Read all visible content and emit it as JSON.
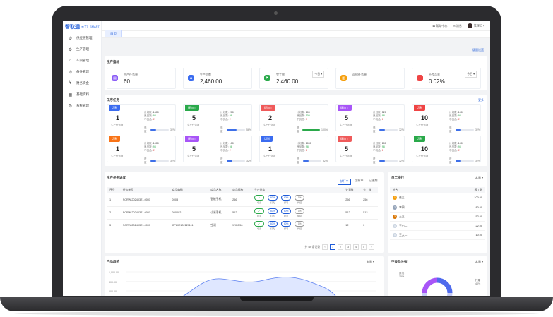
{
  "logo": {
    "name": "智取通",
    "tag": "云工厂SMART"
  },
  "sidebar": {
    "items": [
      {
        "label": "供应链管理",
        "icon": "gear-icon"
      },
      {
        "label": "生产管理",
        "icon": "gear-icon"
      },
      {
        "label": "车间管理",
        "icon": "factory-icon"
      },
      {
        "label": "备件管理",
        "icon": "gear-icon"
      },
      {
        "label": "财务资金",
        "icon": "money-icon"
      },
      {
        "label": "基础资料",
        "icon": "grid-icon"
      },
      {
        "label": "系统管理",
        "icon": "gear-icon"
      }
    ]
  },
  "topbar": {
    "help": "帮助中心",
    "message": "消息",
    "user": "管理员"
  },
  "tabs": {
    "home": "首页"
  },
  "layout_link": "版面设置",
  "production": {
    "title": "生产指标",
    "kpis": [
      {
        "label": "生产任务单",
        "value": "60",
        "color": "#8b5cf6",
        "icon": "order-icon"
      },
      {
        "label": "生产总数",
        "value": "2,460.00",
        "color": "#3b6cf0",
        "icon": "cube-icon"
      },
      {
        "label": "完工数",
        "value": "2,460.00",
        "color": "#2aa94a",
        "icon": "flag-icon",
        "select": "今日"
      },
      {
        "label": "返修任务单",
        "value": "",
        "color": "#f59e0b",
        "icon": "doc-icon"
      },
      {
        "label": "不良品率",
        "value": "0.02%",
        "color": "#ef4444",
        "icon": "alert-icon",
        "select": "今日"
      }
    ]
  },
  "tasks": {
    "title": "工序任务",
    "more": "更多",
    "labels": {
      "plan": "计划数",
      "good": "良品数",
      "bad": "不良品",
      "progress": "进度",
      "sub": "生产任务数"
    },
    "items": [
      {
        "tag": "切割",
        "color": "#3b6cf0",
        "num": "1",
        "plan": "1500",
        "good": "98",
        "bad": "2",
        "pct": "32%",
        "fill": 0.32
      },
      {
        "tag": "焊加工",
        "color": "#2aa94a",
        "num": "5",
        "plan": "200",
        "good": "98",
        "bad": "2",
        "pct": "56%",
        "fill": 0.56
      },
      {
        "tag": "焊加工",
        "color": "#ef5a5a",
        "num": "2",
        "plan": "100",
        "good": "100",
        "bad": "0",
        "pct": "100%",
        "fill": 1.0
      },
      {
        "tag": "焊加工",
        "color": "#a855f7",
        "num": "5",
        "plan": "520",
        "good": "98",
        "bad": "2",
        "pct": "32%",
        "fill": 0.32
      },
      {
        "tag": "切割",
        "color": "#ef4444",
        "num": "10",
        "plan": "100",
        "good": "98",
        "bad": "2",
        "pct": "32%",
        "fill": 0.32
      },
      {
        "tag": "切割",
        "color": "#f97316",
        "num": "1",
        "plan": "1000",
        "good": "98",
        "bad": "2",
        "pct": "32%",
        "fill": 0.32
      },
      {
        "tag": "焊加工",
        "color": "#a855f7",
        "num": "5",
        "plan": "100",
        "good": "98",
        "bad": "2",
        "pct": "32%",
        "fill": 0.32
      },
      {
        "tag": "切割",
        "color": "#3b6cf0",
        "num": "1",
        "plan": "1000",
        "good": "98",
        "bad": "2",
        "pct": "32%",
        "fill": 0.32
      },
      {
        "tag": "焊加工",
        "color": "#ef5a5a",
        "num": "5",
        "plan": "100",
        "good": "98",
        "bad": "2",
        "pct": "32%",
        "fill": 0.32
      },
      {
        "tag": "切割",
        "color": "#2aa94a",
        "num": "10",
        "plan": "100",
        "good": "98",
        "bad": "2",
        "pct": "32%",
        "fill": 0.32
      }
    ]
  },
  "progress_table": {
    "title": "生产任务进度",
    "filters": [
      "执行中",
      "暂存中",
      "已逾期"
    ],
    "headers": [
      "序号",
      "任务单号",
      "商品编码",
      "商品名称",
      "商品规格",
      "生产进度",
      "计划数",
      "完工数"
    ],
    "rows": [
      {
        "no": "1",
        "code": "SCRW-20240321-0001",
        "item": "0003",
        "name": "智能手机",
        "spec": "256",
        "plan": "256",
        "done": "256",
        "steps": [
          {
            "v": "✓",
            "t": "切割",
            "s": "g"
          },
          {
            "v": "60%",
            "t": "打孔",
            "s": "b"
          },
          {
            "v": "60%",
            "t": "折弯",
            "s": "b"
          },
          {
            "v": "0%",
            "t": "焊接",
            "s": "n"
          }
        ]
      },
      {
        "no": "2",
        "code": "SCRW-20240321-0001",
        "item": "000002",
        "name": "小米手机",
        "spec": "512",
        "plan": "512",
        "done": "512",
        "steps": [
          {
            "v": "✓",
            "t": "切割",
            "s": "g"
          },
          {
            "v": "60%",
            "t": "打孔",
            "s": "b"
          },
          {
            "v": "60%",
            "t": "折弯",
            "s": "b"
          },
          {
            "v": "0%",
            "t": "焊接",
            "s": "n"
          }
        ]
      },
      {
        "no": "3",
        "code": "SCRW-20240321-0001",
        "item": "CP202102121111",
        "name": "空调",
        "spec": "WK-D56",
        "plan": "12",
        "done": "0",
        "steps": [
          {
            "v": "✓",
            "t": "切割",
            "s": "g"
          },
          {
            "v": "60%",
            "t": "打孔",
            "s": "b"
          },
          {
            "v": "60%",
            "t": "折弯",
            "s": "b"
          },
          {
            "v": "0%",
            "t": "焊接",
            "s": "n"
          }
        ]
      }
    ],
    "pager": {
      "total": "共 58 条记录",
      "pages": [
        "1",
        "2",
        "3",
        "4",
        "5"
      ]
    }
  },
  "ranking": {
    "title": "员工排行",
    "select": "本周",
    "headers": [
      "姓名",
      "报工数"
    ],
    "rows": [
      {
        "rank": "1",
        "name": "张三",
        "value": "100.00",
        "color": "#f59e0b"
      },
      {
        "rank": "2",
        "name": "李四",
        "value": "80.00",
        "color": "#94a3b8"
      },
      {
        "rank": "3",
        "name": "王五",
        "value": "52.00",
        "color": "#d97706"
      },
      {
        "rank": "4",
        "name": "王小二",
        "value": "22.00",
        "color": "#cbd5e1"
      },
      {
        "rank": "5",
        "name": "王大二",
        "value": "10.00",
        "color": "#cbd5e1"
      }
    ]
  },
  "trend": {
    "title": "产品趋势",
    "select": "本周",
    "ticks": [
      "1,000.00",
      "800.00",
      "600.00"
    ]
  },
  "defects": {
    "title": "不良品分布",
    "select": "本周",
    "other": {
      "label": "其他",
      "pct": "15%"
    },
    "main": {
      "label": "打磨",
      "pct": "40%"
    }
  },
  "chart_data": {
    "type": "pie",
    "title": "不良品分布",
    "slices": [
      {
        "label": "其他",
        "value": 15
      },
      {
        "label": "打磨",
        "value": 40
      }
    ]
  }
}
